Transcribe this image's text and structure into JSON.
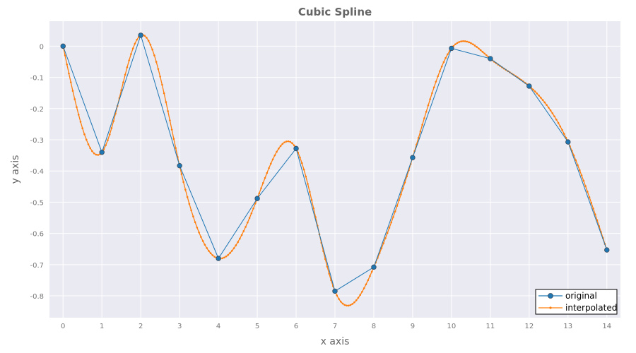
{
  "chart_data": {
    "type": "line",
    "title": "Cubic Spline",
    "xlabel": "x axis",
    "ylabel": "y axis",
    "xlim": [
      -0.35,
      14.35
    ],
    "ylim": [
      -0.87,
      0.08
    ],
    "xticks": [
      0,
      1,
      2,
      3,
      4,
      5,
      6,
      7,
      8,
      9,
      10,
      11,
      12,
      13,
      14
    ],
    "yticks": [
      0,
      -0.1,
      -0.2,
      -0.3,
      -0.4,
      -0.5,
      -0.6,
      -0.7,
      -0.8
    ],
    "ytick_labels": [
      "0",
      "-0.1",
      "-0.2",
      "-0.3",
      "-0.4",
      "-0.5",
      "-0.6",
      "-0.7",
      "-0.8"
    ],
    "grid": true,
    "legend_position": "bottom-right",
    "colors": {
      "original": "#1f77b4",
      "interpolated": "#ff7f0e",
      "background": "#eaeaf2",
      "grid": "#ffffff"
    },
    "series": [
      {
        "name": "original",
        "x": [
          0,
          1,
          2,
          3,
          4,
          5,
          6,
          7,
          8,
          9,
          10,
          11,
          12,
          13,
          14
        ],
        "y": [
          0,
          -0.34,
          0.035,
          -0.383,
          -0.68,
          -0.488,
          -0.328,
          -0.785,
          -0.708,
          -0.357,
          -0.007,
          -0.04,
          -0.128,
          -0.307,
          -0.653
        ]
      },
      {
        "name": "interpolated",
        "interpolation": "natural cubic spline through original",
        "samples_per_unit": 20
      }
    ]
  }
}
